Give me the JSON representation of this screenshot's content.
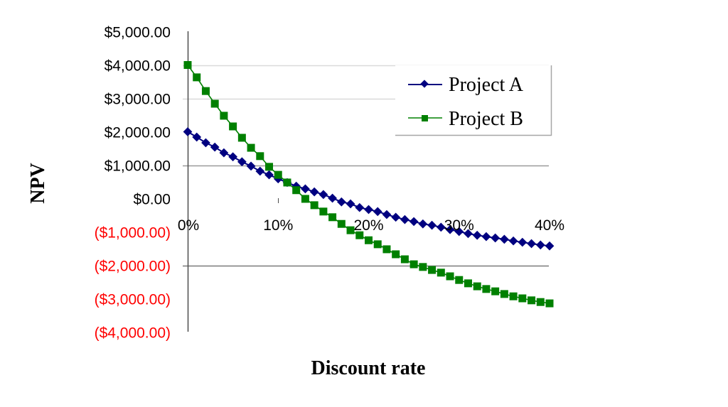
{
  "chart_data": {
    "type": "line",
    "title": "",
    "xlabel": "Discount rate",
    "ylabel": "NPV",
    "x": [
      0,
      1,
      2,
      3,
      4,
      5,
      6,
      7,
      8,
      9,
      10,
      11,
      12,
      13,
      14,
      15,
      16,
      17,
      18,
      19,
      20,
      21,
      22,
      23,
      24,
      25,
      26,
      27,
      28,
      29,
      30,
      31,
      32,
      33,
      34,
      35,
      36,
      37,
      38,
      39,
      40
    ],
    "x_unit": "%",
    "xlim": [
      0,
      40
    ],
    "ylim": [
      -4000,
      5000
    ],
    "x_ticks": [
      {
        "value": 0,
        "label": "0%"
      },
      {
        "value": 10,
        "label": "10%"
      },
      {
        "value": 20,
        "label": "20%"
      },
      {
        "value": 30,
        "label": "30%"
      },
      {
        "value": 40,
        "label": "40%"
      }
    ],
    "y_ticks": [
      {
        "value": 5000,
        "label": "$5,000.00",
        "negative": false
      },
      {
        "value": 4000,
        "label": "$4,000.00",
        "negative": false
      },
      {
        "value": 3000,
        "label": "$3,000.00",
        "negative": false
      },
      {
        "value": 2000,
        "label": "$2,000.00",
        "negative": false
      },
      {
        "value": 1000,
        "label": "$1,000.00",
        "negative": false
      },
      {
        "value": 0,
        "label": "$0.00",
        "negative": false
      },
      {
        "value": -1000,
        "label": "($1,000.00)",
        "negative": true
      },
      {
        "value": -2000,
        "label": "($2,000.00)",
        "negative": true
      },
      {
        "value": -3000,
        "label": "($3,000.00)",
        "negative": true
      },
      {
        "value": -4000,
        "label": "($4,000.00)",
        "negative": true
      }
    ],
    "gridlines": [
      {
        "value": 4000,
        "color": "#d9d9d9"
      },
      {
        "value": 3000,
        "color": "#d9d9d9"
      },
      {
        "value": 1000,
        "color": "#9a9a9a"
      },
      {
        "value": -2000,
        "color": "#7a7a7a"
      }
    ],
    "legend_position": "upper-right",
    "series": [
      {
        "name": "Project A",
        "color": "#000080",
        "marker": "diamond",
        "values": [
          2000,
          1840,
          1670,
          1540,
          1370,
          1250,
          1100,
          970,
          820,
          710,
          590,
          480,
          370,
          290,
          200,
          120,
          10,
          -100,
          -160,
          -270,
          -330,
          -390,
          -480,
          -560,
          -630,
          -690,
          -760,
          -800,
          -860,
          -930,
          -990,
          -1050,
          -1100,
          -1140,
          -1180,
          -1220,
          -1270,
          -1310,
          -1350,
          -1390,
          -1420
        ]
      },
      {
        "name": "Project B",
        "color": "#008000",
        "marker": "square",
        "values": [
          4000,
          3630,
          3220,
          2840,
          2480,
          2160,
          1820,
          1520,
          1270,
          950,
          710,
          480,
          250,
          -10,
          -200,
          -390,
          -560,
          -760,
          -950,
          -1100,
          -1250,
          -1370,
          -1520,
          -1670,
          -1820,
          -1970,
          -2050,
          -2140,
          -2220,
          -2330,
          -2440,
          -2540,
          -2630,
          -2710,
          -2780,
          -2860,
          -2930,
          -2990,
          -3050,
          -3100,
          -3140
        ]
      }
    ]
  },
  "colors": {
    "negative_label": "#ff0000",
    "positive_label": "#000000",
    "axis": "#4d4d4d",
    "legend_border": "#a6a6a6"
  },
  "legend": {
    "items": [
      {
        "label": "Project A"
      },
      {
        "label": "Project B"
      }
    ]
  },
  "axes": {
    "x_title": "Discount rate",
    "y_title": "NPV"
  }
}
